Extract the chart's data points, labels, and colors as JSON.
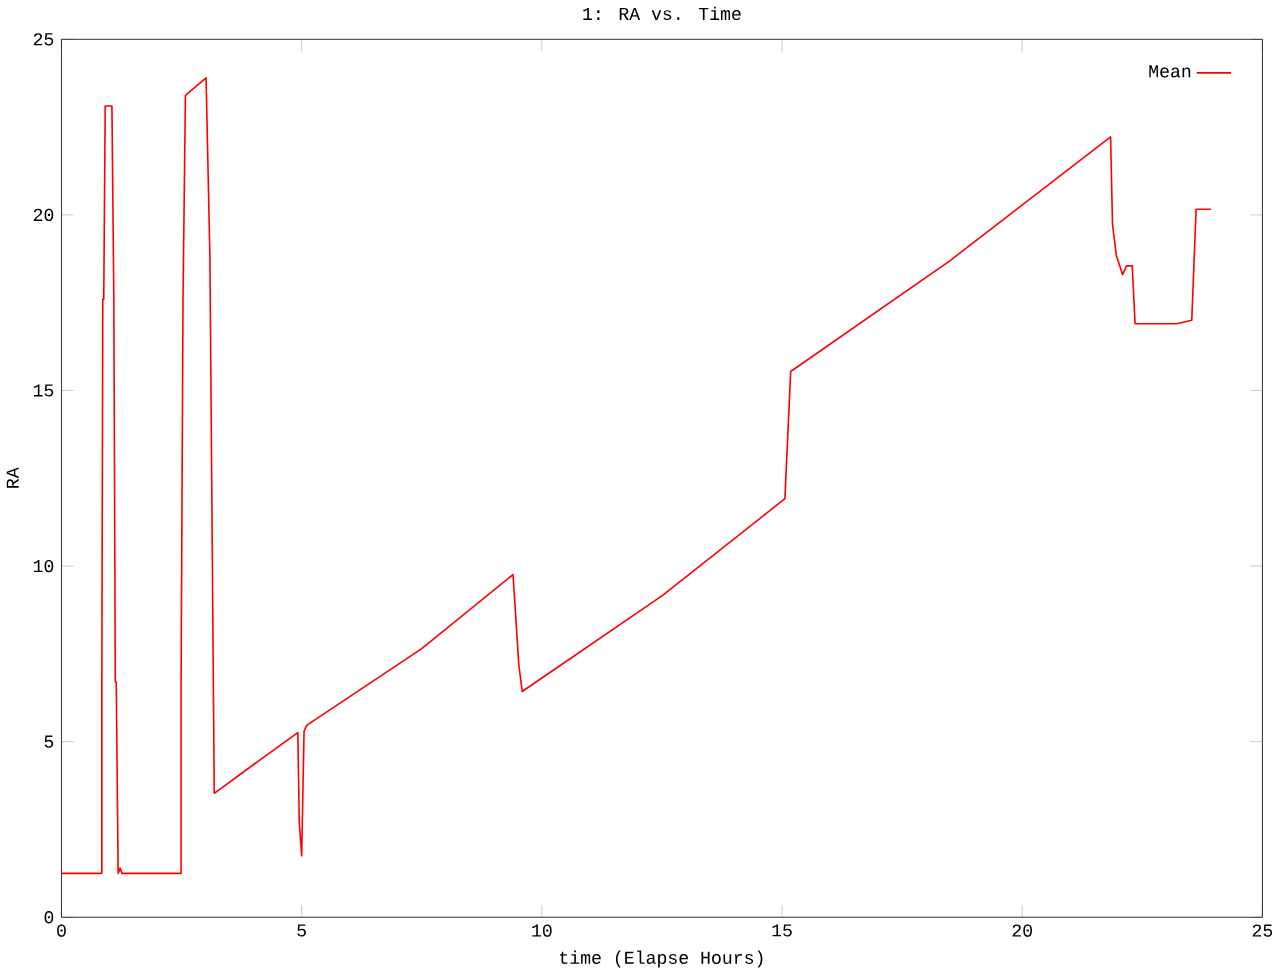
{
  "chart_data": {
    "type": "line",
    "title": "1: RA vs. Time",
    "xlabel": "time (Elapse Hours)",
    "ylabel": "RA",
    "x": [
      0,
      0.84,
      0.84,
      0.86,
      0.88,
      0.91,
      1.05,
      1.09,
      1.12,
      1.14,
      1.18,
      1.22,
      1.26,
      2.49,
      2.49,
      2.53,
      2.58,
      3.01,
      3.09,
      3.15,
      3.18,
      4.0,
      4.92,
      4.95,
      5.0,
      5.05,
      5.11,
      7.5,
      9.4,
      9.52,
      9.59,
      12.5,
      15.06,
      15.18,
      18.5,
      21.84,
      21.88,
      21.96,
      22.09,
      22.17,
      22.29,
      22.35,
      23.22,
      23.53,
      23.62,
      23.93
    ],
    "series": [
      {
        "name": "Mean",
        "color": "#ff0000",
        "values": [
          1.25,
          1.25,
          6.7,
          17.6,
          17.6,
          23.1,
          23.1,
          17.6,
          6.7,
          6.7,
          1.25,
          1.4,
          1.25,
          1.25,
          6.7,
          17.6,
          23.4,
          23.9,
          18.8,
          8.6,
          3.53,
          4.35,
          5.26,
          2.7,
          1.75,
          5.3,
          5.47,
          7.65,
          9.76,
          7.2,
          6.43,
          9.15,
          11.92,
          15.54,
          18.7,
          22.22,
          19.72,
          18.84,
          18.3,
          18.55,
          18.55,
          16.9,
          16.9,
          17.0,
          20.16,
          20.16
        ]
      }
    ],
    "xlim": [
      0,
      25
    ],
    "ylim": [
      0,
      25
    ],
    "xticks": [
      0,
      5,
      10,
      15,
      20,
      25
    ],
    "yticks": [
      0,
      5,
      10,
      15,
      20,
      25
    ],
    "legend": "top right",
    "marker": "none",
    "line_style": "solid"
  }
}
